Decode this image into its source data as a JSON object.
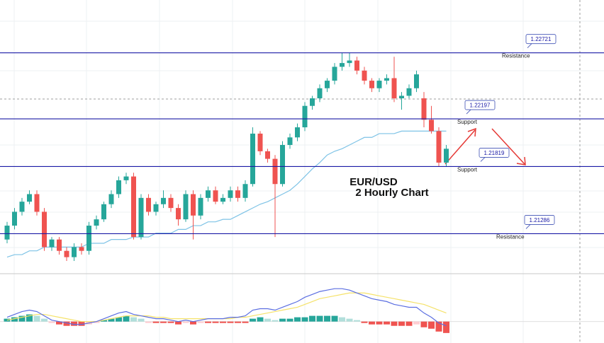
{
  "chart_data": {
    "type": "candlestick",
    "title": "EUR/USD",
    "subtitle": "2 Hourly Chart",
    "ylim": [
      1.2098,
      1.2314
    ],
    "grid": true,
    "up_color": "#26a69a",
    "down_color": "#ef5350",
    "open": [
      1.2124,
      1.2135,
      1.2146,
      1.2154,
      1.216,
      1.2146,
      1.2118,
      1.2124,
      1.2115,
      1.211,
      1.2118,
      1.2115,
      1.2135,
      1.214,
      1.2152,
      1.216,
      1.2171,
      1.2174,
      1.2126,
      1.2157,
      1.2146,
      1.2152,
      1.2157,
      1.2149,
      1.214,
      1.216,
      1.2143,
      1.2157,
      1.2163,
      1.2154,
      1.2157,
      1.2163,
      1.2157,
      1.2168,
      1.2208,
      1.2194,
      1.2188,
      1.2168,
      1.2199,
      1.2205,
      1.2213,
      1.223,
      1.2236,
      1.2244,
      1.225,
      1.2261,
      1.2264,
      1.2266,
      1.2258,
      1.225,
      1.2244,
      1.225,
      1.2252,
      1.2236,
      1.2238,
      1.2244,
      1.2236,
      1.2219,
      1.221,
      1.2185
    ],
    "high": [
      1.2138,
      1.2149,
      1.2157,
      1.2163,
      1.2163,
      1.2149,
      1.2126,
      1.2126,
      1.2118,
      1.2121,
      1.2121,
      1.2138,
      1.2143,
      1.2154,
      1.2163,
      1.2174,
      1.2177,
      1.2177,
      1.216,
      1.216,
      1.2154,
      1.2163,
      1.216,
      1.2152,
      1.2163,
      1.2163,
      1.216,
      1.2166,
      1.2166,
      1.216,
      1.2166,
      1.2166,
      1.2171,
      1.2213,
      1.221,
      1.2196,
      1.2191,
      1.2202,
      1.2208,
      1.2216,
      1.2233,
      1.2238,
      1.2247,
      1.2252,
      1.2264,
      1.2272,
      1.2272,
      1.2269,
      1.2261,
      1.2252,
      1.2252,
      1.2255,
      1.2269,
      1.2241,
      1.2247,
      1.2258,
      1.2241,
      1.223,
      1.2213,
      1.2199
    ],
    "low": [
      1.2121,
      1.2132,
      1.2143,
      1.2152,
      1.2143,
      1.2115,
      1.2115,
      1.2112,
      1.2107,
      1.2107,
      1.2112,
      1.2112,
      1.2132,
      1.2138,
      1.2149,
      1.2157,
      1.2168,
      1.2124,
      1.2124,
      1.2143,
      1.2143,
      1.2149,
      1.2146,
      1.2135,
      1.2138,
      1.2124,
      1.214,
      1.2154,
      1.2152,
      1.2152,
      1.2154,
      1.2154,
      1.2154,
      1.2166,
      1.2191,
      1.2185,
      1.2126,
      1.2166,
      1.2196,
      1.2202,
      1.221,
      1.2227,
      1.2233,
      1.2241,
      1.2247,
      1.2258,
      1.2261,
      1.2255,
      1.2247,
      1.2241,
      1.2241,
      1.2247,
      1.2233,
      1.2227,
      1.2236,
      1.2241,
      1.2213,
      1.2208,
      1.2182,
      1.2182
    ],
    "close": [
      1.2135,
      1.2146,
      1.2154,
      1.216,
      1.2146,
      1.2118,
      1.2124,
      1.2115,
      1.211,
      1.2118,
      1.2115,
      1.2135,
      1.214,
      1.2152,
      1.216,
      1.2171,
      1.2174,
      1.2126,
      1.2157,
      1.2146,
      1.2152,
      1.2157,
      1.2149,
      1.214,
      1.216,
      1.2143,
      1.2157,
      1.2163,
      1.2154,
      1.2157,
      1.2163,
      1.2157,
      1.2168,
      1.2208,
      1.2194,
      1.2188,
      1.2168,
      1.2199,
      1.2205,
      1.2213,
      1.223,
      1.2236,
      1.2244,
      1.225,
      1.2261,
      1.2264,
      1.2266,
      1.2258,
      1.225,
      1.2244,
      1.225,
      1.2252,
      1.2236,
      1.2238,
      1.2244,
      1.2255,
      1.2219,
      1.221,
      1.2185,
      1.2196
    ],
    "ma": {
      "color": "#7ec3e6",
      "values": [
        1.211,
        1.2112,
        1.2112,
        1.2115,
        1.2115,
        1.2118,
        1.2118,
        1.2118,
        1.2118,
        1.2118,
        1.2118,
        1.2121,
        1.2121,
        1.2121,
        1.2124,
        1.2124,
        1.2124,
        1.2126,
        1.2126,
        1.2126,
        1.2129,
        1.2129,
        1.2129,
        1.2132,
        1.2132,
        1.2135,
        1.2135,
        1.2138,
        1.2138,
        1.214,
        1.214,
        1.2143,
        1.2146,
        1.2149,
        1.2152,
        1.2154,
        1.2157,
        1.216,
        1.2163,
        1.2168,
        1.2174,
        1.218,
        1.2185,
        1.2191,
        1.2194,
        1.2196,
        1.2199,
        1.2202,
        1.2205,
        1.2205,
        1.2208,
        1.2208,
        1.2208,
        1.221,
        1.221,
        1.221,
        1.221,
        1.221,
        1.221,
        1.221
      ]
    },
    "level_color": "#1a1aa6",
    "levels": [
      {
        "value": 1.22721,
        "note": "Resistance"
      },
      {
        "value": 1.22197,
        "note": "Support"
      },
      {
        "value": 1.21819,
        "note": "Support"
      },
      {
        "value": 1.21286,
        "note": "Resistance"
      }
    ],
    "indicator": {
      "ylim": [
        -15,
        32
      ],
      "hist_up_color": "#26a69a",
      "hist_up_light": "#b2dfdb",
      "hist_down_color": "#ef5350",
      "hist_down_light": "#ffcdd2",
      "histogram": [
        2,
        3,
        4,
        5,
        4,
        2,
        -1,
        -2,
        -3,
        -3,
        -3,
        -2,
        -1,
        1,
        2,
        3,
        4,
        3,
        2,
        -1,
        -1,
        -1,
        -1,
        -2,
        -1,
        -2,
        -1,
        -1,
        -1,
        -1,
        -1,
        -1,
        -1,
        2,
        3,
        2,
        1,
        2,
        2,
        3,
        3,
        4,
        4,
        4,
        4,
        3,
        2,
        1,
        -1,
        -2,
        -2,
        -2,
        -3,
        -3,
        -3,
        -2,
        -4,
        -5,
        -7,
        -8
      ],
      "macd": {
        "color": "#5b6ee1",
        "values": [
          3,
          5,
          7,
          8,
          7,
          4,
          1,
          0,
          -1,
          -2,
          -2,
          -1,
          0,
          2,
          4,
          6,
          7,
          5,
          4,
          3,
          2,
          2,
          1,
          0,
          1,
          0,
          1,
          2,
          2,
          2,
          3,
          3,
          4,
          8,
          9,
          9,
          8,
          10,
          12,
          14,
          17,
          19,
          21,
          22,
          23,
          23,
          22,
          20,
          18,
          16,
          15,
          14,
          12,
          11,
          10,
          10,
          6,
          3,
          -1,
          -3
        ]
      },
      "signal": {
        "color": "#f5e26a",
        "values": [
          1,
          2,
          3,
          4,
          5,
          5,
          4,
          3,
          2,
          1,
          0,
          0,
          0,
          1,
          2,
          3,
          4,
          4,
          4,
          4,
          3,
          3,
          2,
          2,
          2,
          2,
          2,
          2,
          2,
          2,
          2,
          3,
          3,
          4,
          5,
          6,
          7,
          8,
          9,
          10,
          12,
          14,
          16,
          17,
          18,
          19,
          20,
          20,
          20,
          19,
          18,
          17,
          16,
          15,
          14,
          13,
          12,
          10,
          8,
          6
        ]
      }
    }
  }
}
